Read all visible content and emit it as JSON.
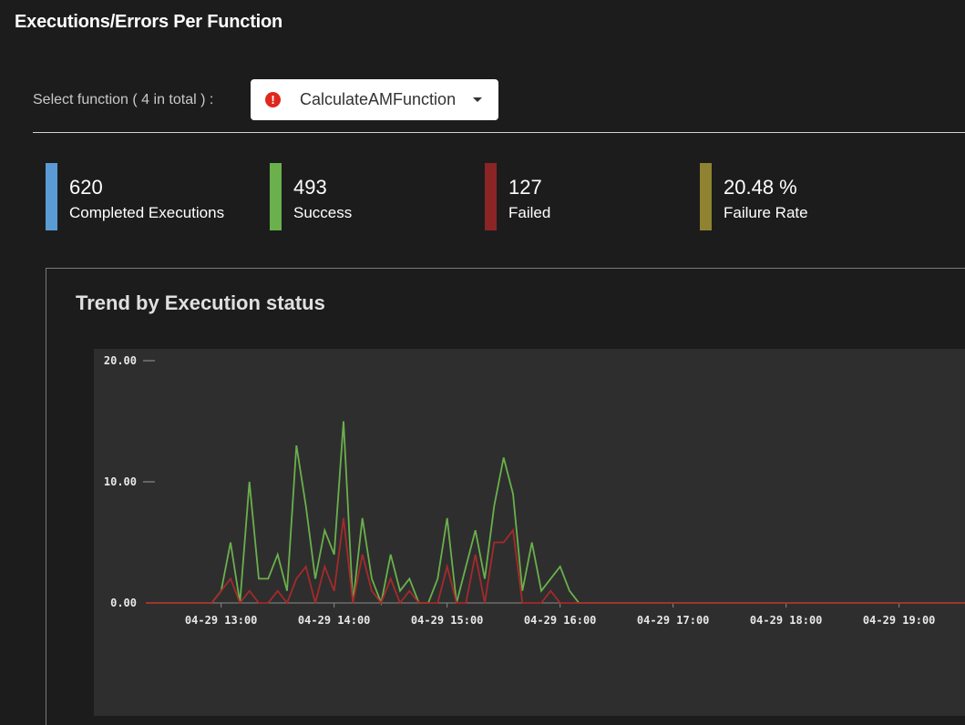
{
  "header": {
    "title": "Executions/Errors Per Function"
  },
  "selector": {
    "label": "Select function ( 4 in total ) :",
    "selected": "CalculateAMFunction"
  },
  "kpis": [
    {
      "value": "620",
      "label": "Completed Executions",
      "color": "#5b9bd5"
    },
    {
      "value": "493",
      "label": "Success",
      "color": "#6ab04c"
    },
    {
      "value": "127",
      "label": "Failed",
      "color": "#8b2525"
    },
    {
      "value": "20.48 %",
      "label": "Failure Rate",
      "color": "#8f8331"
    }
  ],
  "chart": {
    "title": "Trend by Execution status"
  },
  "chart_data": {
    "type": "line",
    "ylim": [
      0,
      20
    ],
    "y_ticks": [
      "0.00",
      "10.00",
      "20.00"
    ],
    "y_tick_values": [
      0,
      10,
      20
    ],
    "x_tick_labels": [
      "04-29 13:00",
      "04-29 14:00",
      "04-29 15:00",
      "04-29 16:00",
      "04-29 17:00",
      "04-29 18:00",
      "04-29 19:00"
    ],
    "x_tick_hours": [
      13,
      14,
      15,
      16,
      17,
      18,
      19
    ],
    "x_step_minutes": 5,
    "x_start": "04-29 12:20",
    "series": [
      {
        "color": "#6ab04c",
        "values": [
          0,
          0,
          0,
          0,
          0,
          0,
          0,
          0,
          1,
          5,
          0,
          10,
          2,
          2,
          4,
          1,
          13,
          8,
          2,
          6,
          4,
          15,
          0,
          7,
          2,
          0,
          4,
          1,
          2,
          0,
          0,
          2,
          7,
          0,
          3,
          6,
          2,
          8,
          12,
          9,
          1,
          5,
          1,
          2,
          3,
          1,
          0,
          0,
          0,
          0,
          0,
          0,
          0,
          0,
          0,
          0,
          0,
          0,
          0,
          0,
          0,
          0,
          0,
          0,
          0,
          0,
          0,
          0,
          0,
          0,
          0,
          0,
          0,
          0,
          0,
          0,
          0,
          0,
          0,
          0,
          0,
          0,
          0,
          0,
          0,
          0,
          0,
          0,
          0,
          0,
          0,
          0,
          0,
          0
        ]
      },
      {
        "color": "#a52a2a",
        "values": [
          0,
          0,
          0,
          0,
          0,
          0,
          0,
          0,
          1,
          2,
          0,
          1,
          0,
          0,
          1,
          0,
          2,
          3,
          0,
          3,
          1,
          7,
          0,
          4,
          1,
          0,
          2,
          0,
          1,
          0,
          0,
          0,
          3,
          0,
          0,
          4,
          0,
          5,
          5,
          6,
          0,
          0,
          0,
          1,
          0,
          0,
          0,
          0,
          0,
          0,
          0,
          0,
          0,
          0,
          0,
          0,
          0,
          0,
          0,
          0,
          0,
          0,
          0,
          0,
          0,
          0,
          0,
          0,
          0,
          0,
          0,
          0,
          0,
          0,
          0,
          0,
          0,
          0,
          0,
          0,
          0,
          0,
          0,
          0,
          0,
          0,
          0,
          0,
          0,
          0,
          0,
          0,
          0,
          0
        ]
      }
    ]
  }
}
